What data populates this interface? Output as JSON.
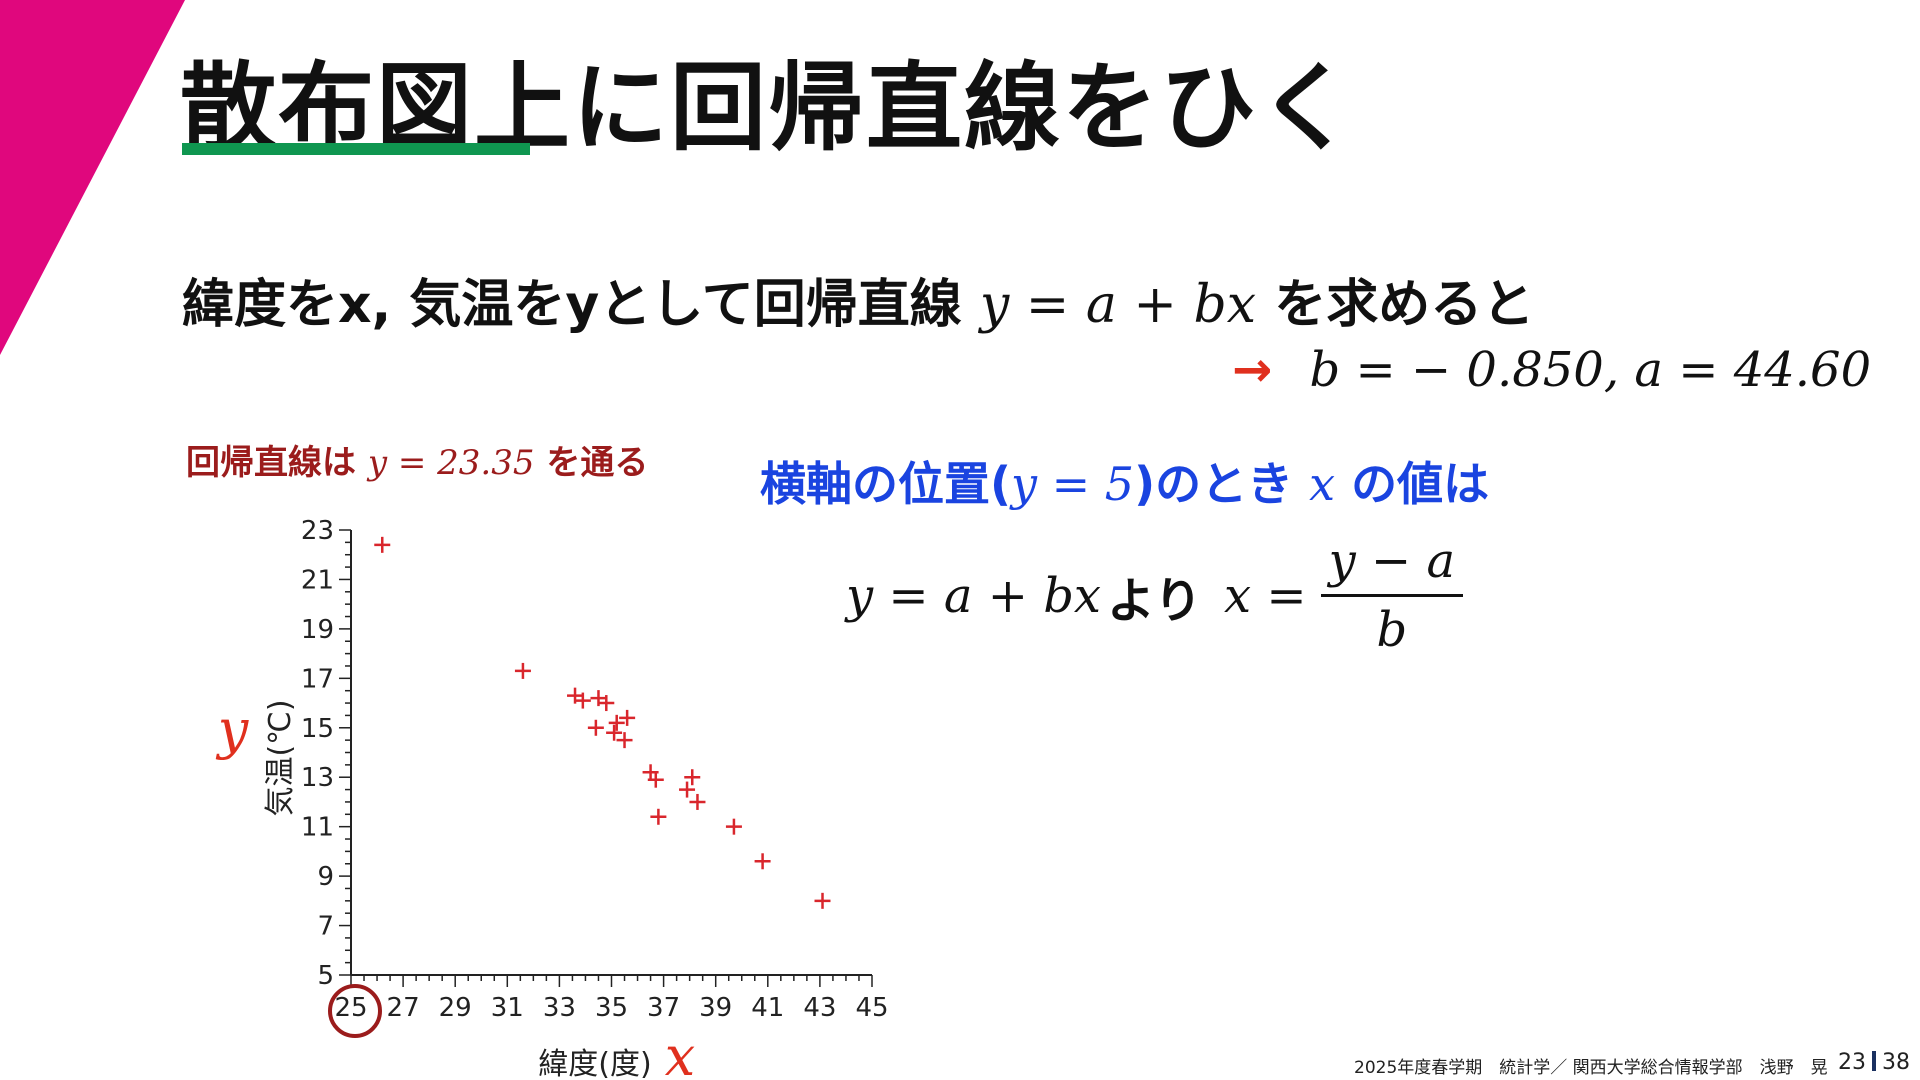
{
  "slide": {
    "title": "散布図上に回帰直線をひく",
    "accent_color": "#0f9650",
    "corner_color": "#e0077d"
  },
  "intro": {
    "prefix": "緯度をx, 気温をyとして回帰直線",
    "formula": "y = a + bx",
    "suffix": "を求めると"
  },
  "result": {
    "arrow": "→",
    "text": "b = − 0.850,   a = 44.60"
  },
  "note": {
    "prefix": "回帰直線は",
    "formula": "y = 23.35",
    "suffix": "を通る"
  },
  "question": {
    "prefix": "横軸の位置(",
    "formula": "y = 5",
    "middle": ")のとき",
    "var": "x",
    "suffix": "の値は"
  },
  "derivation": {
    "lhs": "y = a + bx",
    "connector": "より",
    "rhs_var": "x =",
    "numerator": "y − a",
    "denominator": "b"
  },
  "chart_data": {
    "type": "scatter",
    "xlabel": "緯度(度)",
    "ylabel": "気温(℃)",
    "x_symbol": "x",
    "y_symbol": "y",
    "xlim": [
      25,
      45
    ],
    "ylim": [
      5,
      23
    ],
    "x_ticks": [
      "25",
      "27",
      "29",
      "31",
      "33",
      "35",
      "37",
      "39",
      "41",
      "43",
      "45"
    ],
    "y_ticks": [
      "5",
      "7",
      "9",
      "11",
      "13",
      "15",
      "17",
      "19",
      "21",
      "23"
    ],
    "marker_color": "#d9262c",
    "points": [
      {
        "x": 26.2,
        "y": 22.4
      },
      {
        "x": 31.6,
        "y": 17.3
      },
      {
        "x": 33.6,
        "y": 16.3
      },
      {
        "x": 33.9,
        "y": 16.1
      },
      {
        "x": 34.5,
        "y": 16.2
      },
      {
        "x": 34.8,
        "y": 16.0
      },
      {
        "x": 35.6,
        "y": 15.4
      },
      {
        "x": 35.2,
        "y": 15.2
      },
      {
        "x": 34.4,
        "y": 15.0
      },
      {
        "x": 35.1,
        "y": 14.8
      },
      {
        "x": 35.5,
        "y": 14.5
      },
      {
        "x": 36.5,
        "y": 13.2
      },
      {
        "x": 36.7,
        "y": 12.9
      },
      {
        "x": 38.1,
        "y": 13.0
      },
      {
        "x": 37.9,
        "y": 12.5
      },
      {
        "x": 38.3,
        "y": 12.0
      },
      {
        "x": 36.8,
        "y": 11.4
      },
      {
        "x": 39.7,
        "y": 11.0
      },
      {
        "x": 40.8,
        "y": 9.6
      },
      {
        "x": 43.1,
        "y": 8.0
      }
    ],
    "highlight_x_tick": "25",
    "highlight_y_tick": "5",
    "highlight_x_color": "#9b1c1c",
    "highlight_y_color": "#1a44e0"
  },
  "footer": {
    "course": "2025年度春学期　統計学／ 関西大学総合情報学部　浅野　晃",
    "page": "23",
    "total": "38"
  }
}
